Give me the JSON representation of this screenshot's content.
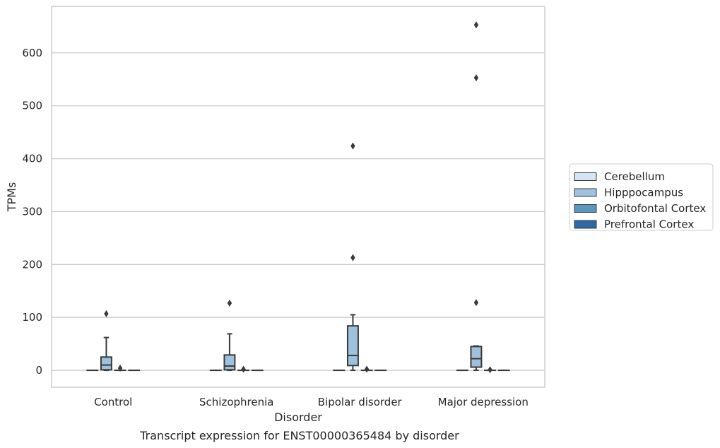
{
  "caption": "Transcript expression for ENST00000365484 by disorder",
  "chart_data": {
    "type": "box",
    "xlabel": "Disorder",
    "ylabel": "TPMs",
    "ylim": [
      -32,
      688
    ],
    "yticks": [
      0,
      100,
      200,
      300,
      400,
      500,
      600
    ],
    "categories": [
      "Control",
      "Schizophrenia",
      "Bipolar disorder",
      "Major depression"
    ],
    "grid": "horizontal",
    "legend_position": "right",
    "series": [
      {
        "name": "Cerebellum",
        "color": "#d4e4f2",
        "boxes": [
          {
            "q1": 0,
            "median": 0,
            "q3": 0,
            "whisker_low": 0,
            "whisker_high": 0,
            "outliers": []
          },
          {
            "q1": 0,
            "median": 0,
            "q3": 0,
            "whisker_low": 0,
            "whisker_high": 0,
            "outliers": []
          },
          {
            "q1": 0,
            "median": 0,
            "q3": 0,
            "whisker_low": 0,
            "whisker_high": 0,
            "outliers": []
          },
          {
            "q1": 0,
            "median": 0,
            "q3": 0,
            "whisker_low": 0,
            "whisker_high": 0,
            "outliers": []
          }
        ]
      },
      {
        "name": "Hipppocampus",
        "color": "#9ec2dd",
        "boxes": [
          {
            "q1": 1,
            "median": 10,
            "q3": 25,
            "whisker_low": 0,
            "whisker_high": 62,
            "outliers": [
              107
            ]
          },
          {
            "q1": 1,
            "median": 8,
            "q3": 29,
            "whisker_low": 0,
            "whisker_high": 69,
            "outliers": [
              127
            ]
          },
          {
            "q1": 9,
            "median": 28,
            "q3": 84,
            "whisker_low": 0,
            "whisker_high": 105,
            "outliers": [
              213,
              424
            ]
          },
          {
            "q1": 6,
            "median": 22,
            "q3": 45,
            "whisker_low": 0,
            "whisker_high": 46,
            "outliers": [
              128,
              553,
              653
            ]
          }
        ]
      },
      {
        "name": "Orbitofontal Cortex",
        "color": "#5b96c1",
        "boxes": [
          {
            "q1": 0,
            "median": 0,
            "q3": 0,
            "whisker_low": 0,
            "whisker_high": 0,
            "outliers": [
              4
            ]
          },
          {
            "q1": 0,
            "median": 0,
            "q3": 0,
            "whisker_low": 0,
            "whisker_high": 0,
            "outliers": [
              2
            ]
          },
          {
            "q1": 0,
            "median": 0,
            "q3": 0,
            "whisker_low": 0,
            "whisker_high": 0,
            "outliers": [
              2
            ]
          },
          {
            "q1": 0,
            "median": 0,
            "q3": 0,
            "whisker_low": 0,
            "whisker_high": 0,
            "outliers": [
              1
            ]
          }
        ]
      },
      {
        "name": "Prefrontal Cortex",
        "color": "#2e68a4",
        "boxes": [
          {
            "q1": 0,
            "median": 0,
            "q3": 0,
            "whisker_low": 0,
            "whisker_high": 0,
            "outliers": []
          },
          {
            "q1": 0,
            "median": 0,
            "q3": 0,
            "whisker_low": 0,
            "whisker_high": 0,
            "outliers": []
          },
          {
            "q1": 0,
            "median": 0,
            "q3": 0,
            "whisker_low": 0,
            "whisker_high": 0,
            "outliers": []
          },
          {
            "q1": 0,
            "median": 0,
            "q3": 0,
            "whisker_low": 0,
            "whisker_high": 0,
            "outliers": []
          }
        ]
      }
    ]
  }
}
